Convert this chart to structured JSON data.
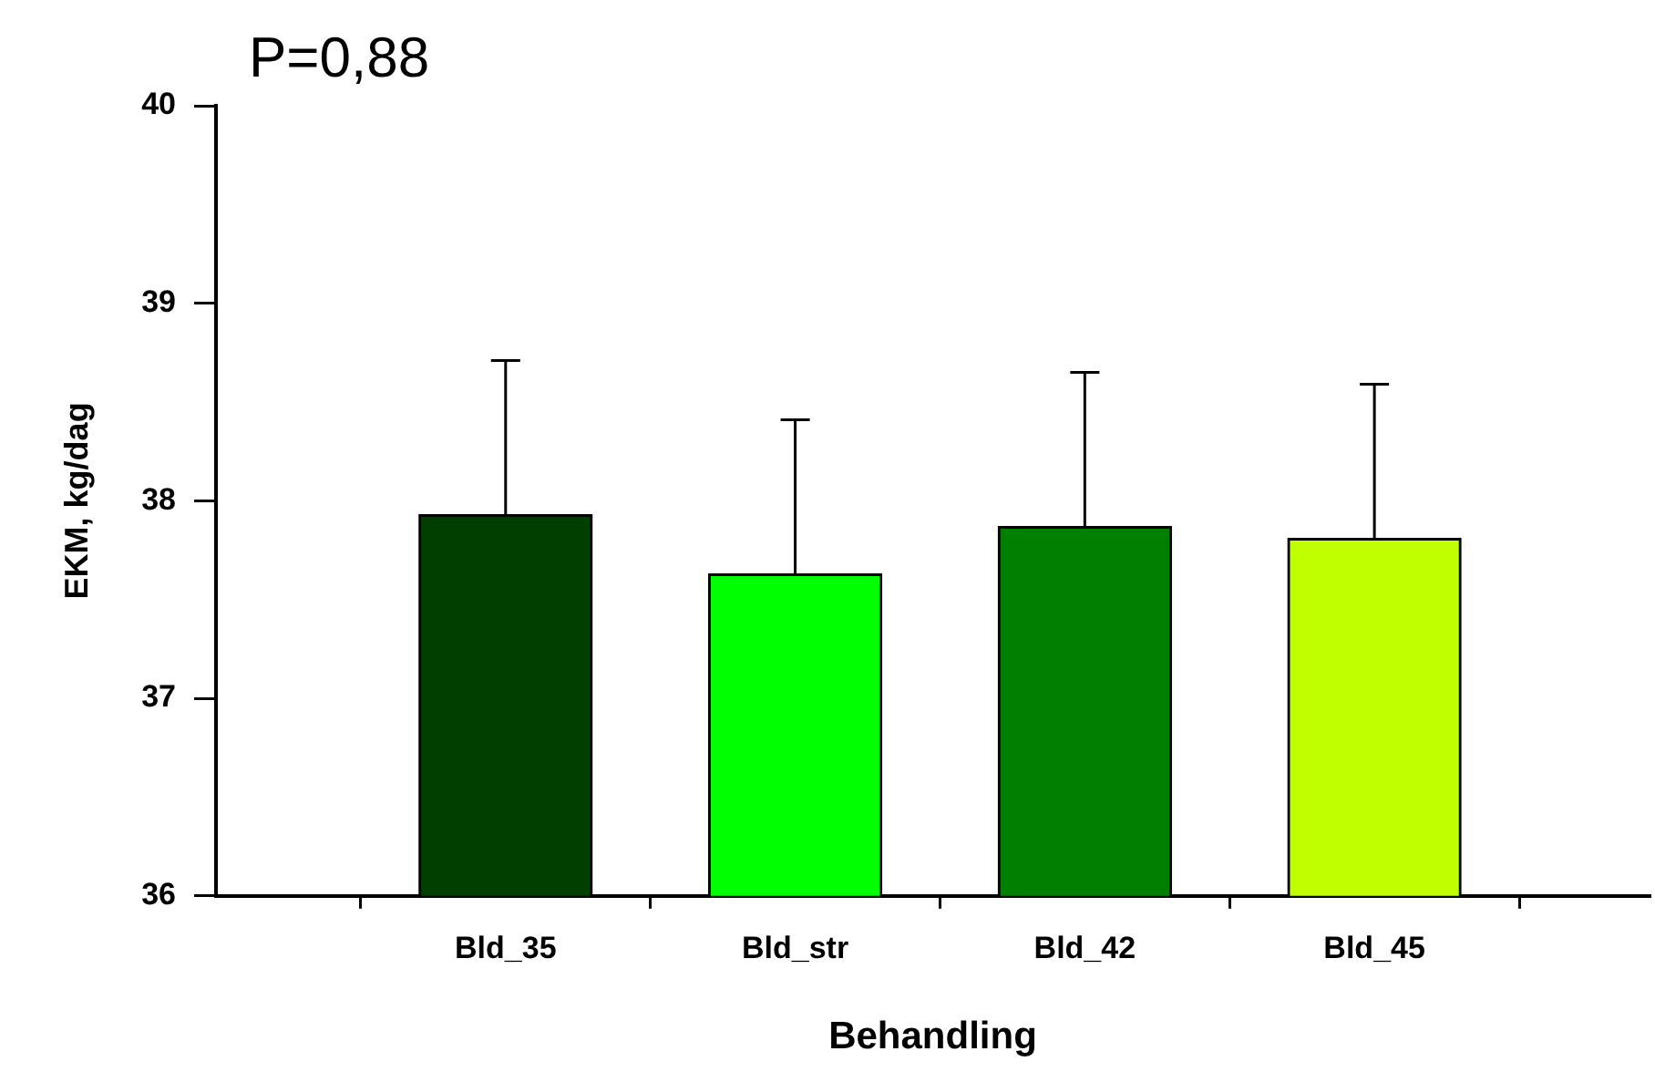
{
  "chart_data": {
    "type": "bar",
    "title": "P=0,88",
    "xlabel": "Behandling",
    "ylabel": "EKM, kg/dag",
    "categories": [
      "Bld_35",
      "Bld_str",
      "Bld_42",
      "Bld_45"
    ],
    "values": [
      37.93,
      37.63,
      37.87,
      37.81
    ],
    "colors": [
      "#003f00",
      "#00ff00",
      "#007f00",
      "#bfff00"
    ],
    "errors": [
      [
        37.93,
        38.71
      ],
      [
        37.63,
        38.41
      ],
      [
        37.87,
        38.65
      ],
      [
        37.81,
        38.59
      ]
    ],
    "ylim": [
      36,
      40
    ],
    "yticks": [
      36,
      37,
      38,
      39,
      40
    ],
    "grid": false,
    "legend": false
  }
}
